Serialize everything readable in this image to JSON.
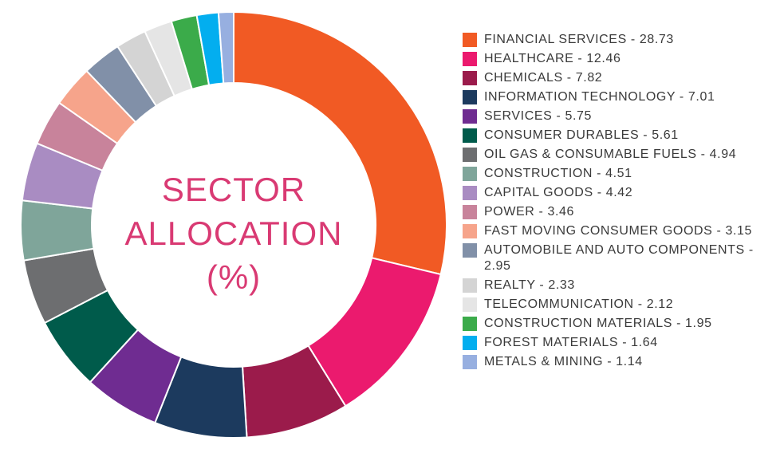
{
  "chart_data": {
    "type": "donut",
    "center_label": [
      "SECTOR",
      "ALLOCATION",
      "(%)"
    ],
    "categories": [
      "FINANCIAL SERVICES - 28.73",
      "HEALTHCARE - 12.46",
      "CHEMICALS - 7.82",
      "INFORMATION TECHNOLOGY - 7.01",
      "SERVICES - 5.75",
      "CONSUMER DURABLES - 5.61",
      "OIL GAS & CONSUMABLE FUELS - 4.94",
      "CONSTRUCTION - 4.51",
      "CAPITAL GOODS - 4.42",
      "POWER - 3.46",
      "FAST MOVING CONSUMER GOODS - 3.15",
      "AUTOMOBILE AND AUTO COMPONENTS - 2.95",
      "REALTY - 2.33",
      "TELECOMMUNICATION - 2.12",
      "CONSTRUCTION MATERIALS - 1.95",
      "FOREST MATERIALS - 1.64",
      "METALS & MINING - 1.14"
    ],
    "values": [
      28.73,
      12.46,
      7.82,
      7.01,
      5.75,
      5.61,
      4.94,
      4.51,
      4.42,
      3.46,
      3.15,
      2.95,
      2.33,
      2.12,
      1.95,
      1.64,
      1.14
    ],
    "colors": [
      "#f15a24",
      "#eb1a6e",
      "#9b1b4b",
      "#1c3a5e",
      "#6f2c91",
      "#005b4b",
      "#6d6e70",
      "#7fa59a",
      "#a98cc2",
      "#c8839b",
      "#f6a48b",
      "#8190a8",
      "#d4d4d4",
      "#e5e5e5",
      "#3bab4a",
      "#03aeef",
      "#97afe0"
    ]
  }
}
